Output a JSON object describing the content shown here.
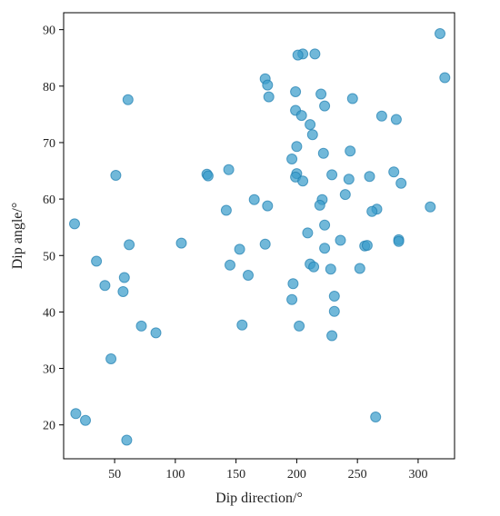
{
  "chart_data": {
    "type": "scatter",
    "title": "",
    "xlabel": "Dip direction/°",
    "ylabel": "Dip angle/°",
    "xlim": [
      8,
      330
    ],
    "ylim": [
      14,
      93
    ],
    "xticks": [
      50,
      100,
      150,
      200,
      250,
      300
    ],
    "yticks": [
      20,
      30,
      40,
      50,
      60,
      70,
      80,
      90
    ],
    "grid": false,
    "marker_color": "#3a9ccb",
    "series": [
      {
        "points": [
          [
            318,
            89.3
          ],
          [
            322,
            81.5
          ],
          [
            205,
            85.7
          ],
          [
            201,
            85.5
          ],
          [
            215,
            85.7
          ],
          [
            174,
            81.3
          ],
          [
            176,
            80.2
          ],
          [
            177,
            78.1
          ],
          [
            199,
            79.0
          ],
          [
            220,
            78.6
          ],
          [
            246,
            77.8
          ],
          [
            61,
            77.6
          ],
          [
            223,
            76.5
          ],
          [
            199,
            75.7
          ],
          [
            204,
            74.8
          ],
          [
            270,
            74.7
          ],
          [
            282,
            74.1
          ],
          [
            211,
            73.2
          ],
          [
            213,
            71.4
          ],
          [
            200,
            69.3
          ],
          [
            244,
            68.5
          ],
          [
            222,
            68.1
          ],
          [
            196,
            67.1
          ],
          [
            200,
            64.5
          ],
          [
            280,
            64.8
          ],
          [
            144,
            65.2
          ],
          [
            126,
            64.4
          ],
          [
            127,
            64.1
          ],
          [
            51,
            64.2
          ],
          [
            199,
            63.9
          ],
          [
            229,
            64.3
          ],
          [
            260,
            64.0
          ],
          [
            205,
            63.2
          ],
          [
            243,
            63.5
          ],
          [
            286,
            62.8
          ],
          [
            240,
            60.8
          ],
          [
            221,
            59.9
          ],
          [
            165,
            59.9
          ],
          [
            176,
            58.8
          ],
          [
            219,
            58.9
          ],
          [
            142,
            58.0
          ],
          [
            310,
            58.6
          ],
          [
            266,
            58.2
          ],
          [
            262,
            57.8
          ],
          [
            17,
            55.6
          ],
          [
            223,
            55.4
          ],
          [
            209,
            54.0
          ],
          [
            236,
            52.7
          ],
          [
            105,
            52.2
          ],
          [
            174,
            52.0
          ],
          [
            62,
            51.9
          ],
          [
            223,
            51.3
          ],
          [
            153,
            51.1
          ],
          [
            256,
            51.7
          ],
          [
            258,
            51.8
          ],
          [
            284,
            52.8
          ],
          [
            284,
            52.5
          ],
          [
            35,
            49.0
          ],
          [
            145,
            48.3
          ],
          [
            211,
            48.5
          ],
          [
            214,
            48.0
          ],
          [
            228,
            47.6
          ],
          [
            252,
            47.7
          ],
          [
            160,
            46.5
          ],
          [
            58,
            46.1
          ],
          [
            42,
            44.7
          ],
          [
            57,
            43.6
          ],
          [
            197,
            45.0
          ],
          [
            231,
            42.8
          ],
          [
            196,
            42.2
          ],
          [
            231,
            40.1
          ],
          [
            155,
            37.7
          ],
          [
            202,
            37.5
          ],
          [
            72,
            37.5
          ],
          [
            84,
            36.3
          ],
          [
            229,
            35.8
          ],
          [
            47,
            31.7
          ],
          [
            18,
            22.0
          ],
          [
            26,
            20.8
          ],
          [
            265,
            21.4
          ],
          [
            60,
            17.3
          ]
        ]
      }
    ]
  }
}
